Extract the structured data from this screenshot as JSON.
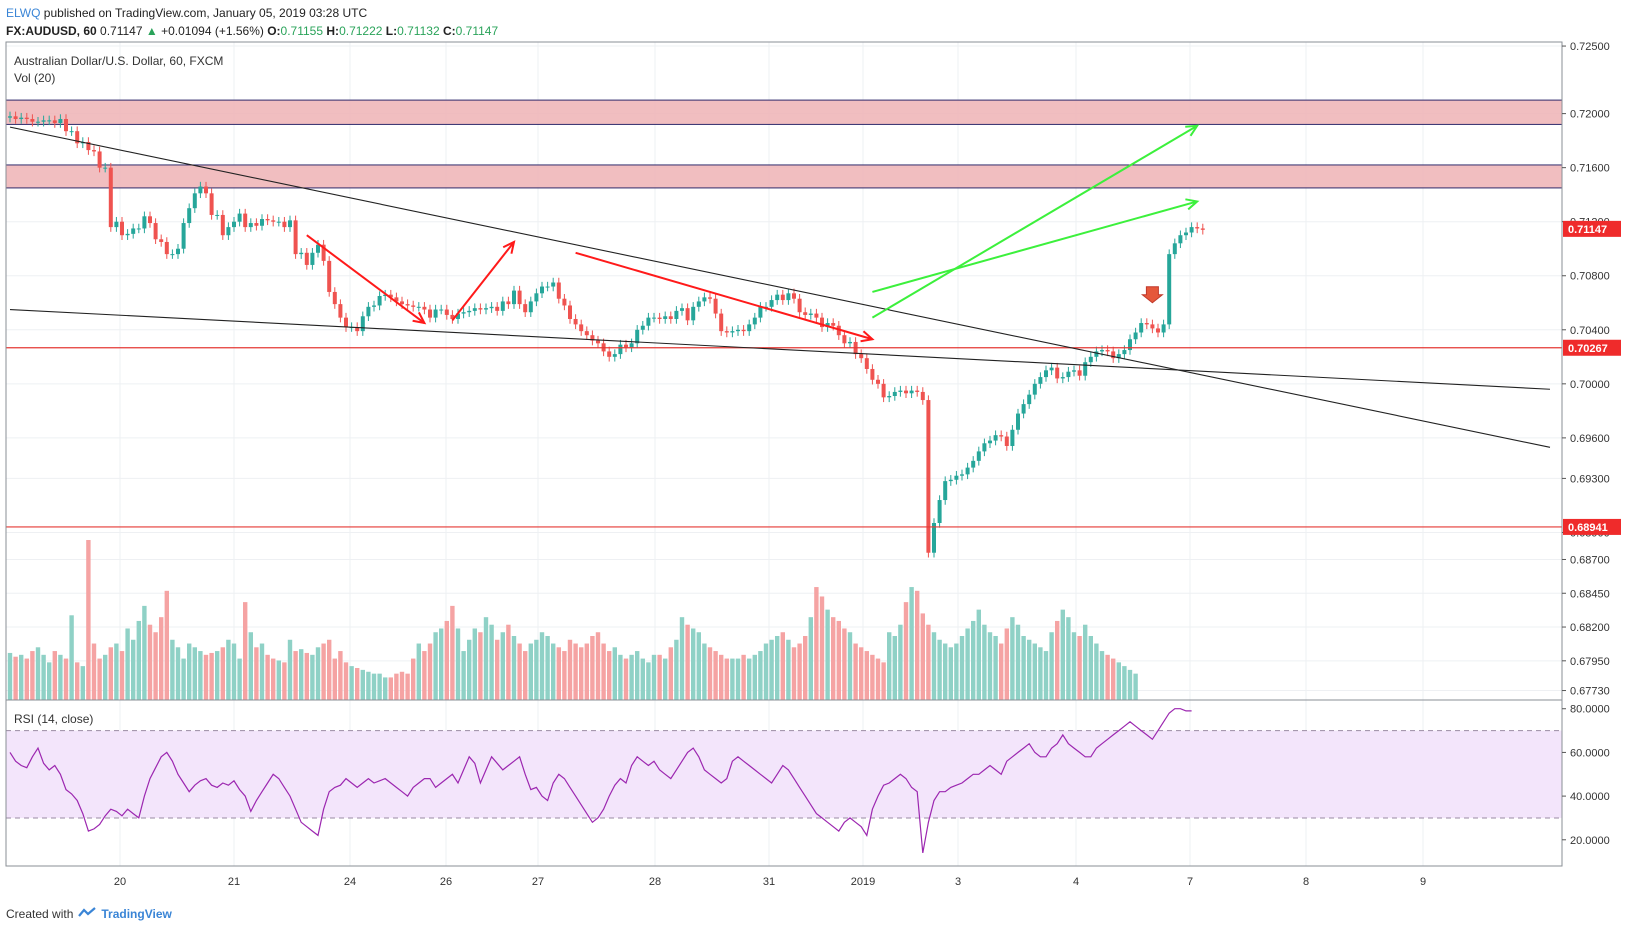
{
  "header": {
    "user": "ELWQ",
    "published": "published on TradingView.com, January 05, 2019 03:28 UTC",
    "symbol": "FX:AUDUSD, 60",
    "last": "0.71147",
    "change_arrow": "▲",
    "change": "+0.01094 (+1.56%)",
    "o_label": "O:",
    "o": "0.71155",
    "h_label": "H:",
    "h": "0.71222",
    "l_label": "L:",
    "l": "0.71132",
    "c_label": "C:",
    "c": "0.71147"
  },
  "main_pane": {
    "title": "Australian Dollar/U.S. Dollar, 60, FXCM",
    "vol_label": "Vol (20)"
  },
  "rsi_pane": {
    "title": "RSI (14, close)"
  },
  "footer": {
    "created": "Created with",
    "brand": "TradingView"
  },
  "colors": {
    "up": "#26a69a",
    "down": "#ef5350",
    "vol_up": "#8fd1c6",
    "vol_down": "#f5a3a3",
    "zone_fill": "#eeb3b5",
    "zone_border": "#2f2a6b",
    "red_line": "#e53935",
    "green_arrow": "#3cf03c",
    "red_arrow": "#ff1a1a",
    "rsi_line": "#9c27b0",
    "rsi_band": "#f3e5fb",
    "tag_red": "#ef2b2b"
  },
  "chart_data": [
    {
      "type": "candlestick",
      "title": "Australian Dollar/U.S. Dollar, 60, FXCM",
      "symbol": "FX:AUDUSD",
      "timeframe": "60",
      "x_tick_labels": [
        "20",
        "21",
        "24",
        "26",
        "27",
        "28",
        "31",
        "2019",
        "3",
        "4",
        "7",
        "8",
        "9"
      ],
      "y_tick_labels": [
        "0.72500",
        "0.72000",
        "0.71600",
        "0.71200",
        "0.70800",
        "0.70400",
        "0.70000",
        "0.69600",
        "0.69300",
        "0.68900",
        "0.68700",
        "0.68450",
        "0.68200",
        "0.67950",
        "0.67730"
      ],
      "ylim": [
        0.6766,
        0.7253
      ],
      "price_tags": [
        {
          "label": "0.71147",
          "value": 0.71147
        },
        {
          "label": "0.70267",
          "value": 0.70267
        },
        {
          "label": "0.68941",
          "value": 0.68941
        }
      ],
      "horizontal_lines": [
        0.70267,
        0.68941
      ],
      "resistance_zones": [
        [
          0.7192,
          0.721
        ],
        [
          0.7145,
          0.7162
        ]
      ],
      "trendlines": [
        {
          "name": "descending-trendline",
          "from": {
            "bar": 0,
            "price": 0.719
          },
          "to": {
            "bar": 275,
            "price": 0.6953
          }
        },
        {
          "name": "support-trendline",
          "from": {
            "bar": 0,
            "price": 0.7055
          },
          "to": {
            "bar": 275,
            "price": 0.6996
          }
        }
      ],
      "annotation_arrows": [
        {
          "color": "red",
          "from": {
            "bar": 53,
            "price": 0.711
          },
          "to": {
            "bar": 74,
            "price": 0.7045
          }
        },
        {
          "color": "red",
          "from": {
            "bar": 79,
            "price": 0.7047
          },
          "to": {
            "bar": 90,
            "price": 0.7105
          }
        },
        {
          "color": "red",
          "from": {
            "bar": 101,
            "price": 0.7097
          },
          "to": {
            "bar": 154,
            "price": 0.7033
          }
        },
        {
          "color": "green",
          "from": {
            "bar": 154,
            "price": 0.7049
          },
          "to": {
            "bar": 212,
            "price": 0.7191
          }
        },
        {
          "color": "green",
          "from": {
            "bar": 154,
            "price": 0.7068
          },
          "to": {
            "bar": 212,
            "price": 0.7135
          }
        },
        {
          "color": "red-down-marker",
          "at": {
            "bar": 204,
            "price": 0.706
          }
        }
      ],
      "series": [
        {
          "name": "AUDUSD close (hourly, approximate)",
          "values": [
            0.7198,
            0.7196,
            0.7197,
            0.7196,
            0.7194,
            0.7194,
            0.7195,
            0.7195,
            0.7193,
            0.7196,
            0.7187,
            0.7187,
            0.7178,
            0.7179,
            0.7173,
            0.7172,
            0.716,
            0.716,
            0.7116,
            0.712,
            0.711,
            0.7111,
            0.7115,
            0.7115,
            0.7124,
            0.7119,
            0.7107,
            0.7105,
            0.7096,
            0.7096,
            0.71,
            0.7119,
            0.713,
            0.7141,
            0.7146,
            0.7141,
            0.7125,
            0.7125,
            0.711,
            0.7116,
            0.712,
            0.7126,
            0.7116,
            0.7119,
            0.7117,
            0.7122,
            0.7121,
            0.712,
            0.712,
            0.7116,
            0.7121,
            0.7096,
            0.7097,
            0.7088,
            0.7097,
            0.7103,
            0.7091,
            0.7068,
            0.7059,
            0.7049,
            0.7042,
            0.7042,
            0.7039,
            0.705,
            0.7057,
            0.7058,
            0.7065,
            0.7066,
            0.7064,
            0.7061,
            0.7059,
            0.7058,
            0.7057,
            0.7057,
            0.7055,
            0.7049,
            0.7055,
            0.7055,
            0.7051,
            0.7048,
            0.7052,
            0.7053,
            0.7054,
            0.7056,
            0.7055,
            0.7056,
            0.7057,
            0.7054,
            0.7061,
            0.7059,
            0.7069,
            0.7059,
            0.7053,
            0.7061,
            0.7067,
            0.7072,
            0.7072,
            0.7075,
            0.7063,
            0.7058,
            0.7048,
            0.7044,
            0.7039,
            0.7036,
            0.7032,
            0.703,
            0.7024,
            0.702,
            0.7022,
            0.7029,
            0.7027,
            0.703,
            0.704,
            0.7043,
            0.7049,
            0.7049,
            0.7048,
            0.705,
            0.7048,
            0.7054,
            0.7056,
            0.7047,
            0.7057,
            0.7061,
            0.7064,
            0.7063,
            0.7052,
            0.7039,
            0.7038,
            0.7039,
            0.704,
            0.7039,
            0.7044,
            0.7049,
            0.7057,
            0.7057,
            0.7062,
            0.7066,
            0.7062,
            0.7067,
            0.7063,
            0.7053,
            0.7051,
            0.7052,
            0.7049,
            0.7042,
            0.7045,
            0.7043,
            0.7036,
            0.703,
            0.7031,
            0.7022,
            0.7019,
            0.7011,
            0.7003,
            0.7,
            0.699,
            0.6991,
            0.6994,
            0.6995,
            0.6993,
            0.6995,
            0.6994,
            0.6988,
            0.6875,
            0.6897,
            0.6914,
            0.6928,
            0.6929,
            0.6932,
            0.6933,
            0.6938,
            0.6943,
            0.695,
            0.6956,
            0.6958,
            0.6962,
            0.6961,
            0.6954,
            0.6966,
            0.6978,
            0.6985,
            0.6992,
            0.7,
            0.7005,
            0.701,
            0.7012,
            0.7004,
            0.7005,
            0.7009,
            0.701,
            0.7006,
            0.7016,
            0.702,
            0.7024,
            0.7025,
            0.7024,
            0.7019,
            0.7022,
            0.7025,
            0.7033,
            0.7038,
            0.7045,
            0.7044,
            0.7041,
            0.7038,
            0.7044,
            0.7096,
            0.7104,
            0.711,
            0.7112,
            0.7116,
            0.7115,
            0.7114
          ]
        }
      ]
    },
    {
      "type": "bar",
      "title": "Vol (20)",
      "series": [
        {
          "name": "volume (relative, approximate)",
          "values": [
            25,
            23,
            24,
            22,
            26,
            28,
            24,
            20,
            26,
            24,
            22,
            45,
            20,
            18,
            85,
            30,
            22,
            24,
            28,
            30,
            26,
            38,
            32,
            42,
            50,
            40,
            36,
            44,
            58,
            32,
            28,
            22,
            30,
            28,
            26,
            24,
            25,
            26,
            28,
            32,
            30,
            22,
            52,
            36,
            28,
            30,
            24,
            22,
            21,
            20,
            32,
            26,
            27,
            25,
            24,
            28,
            30,
            32,
            22,
            26,
            20,
            18,
            17,
            16,
            15,
            14,
            14,
            12,
            12,
            14,
            15,
            14,
            22,
            30,
            26,
            30,
            36,
            38,
            42,
            50,
            38,
            26,
            32,
            38,
            36,
            44,
            40,
            32,
            36,
            40,
            34,
            30,
            26,
            30,
            32,
            36,
            34,
            30,
            28,
            26,
            32,
            30,
            28,
            30,
            34,
            36,
            30,
            26,
            28,
            24,
            22,
            24,
            26,
            22,
            20,
            24,
            24,
            22,
            28,
            32,
            44,
            40,
            38,
            36,
            30,
            28,
            26,
            24,
            22,
            22,
            22,
            24,
            22,
            24,
            26,
            30,
            32,
            34,
            36,
            32,
            28,
            30,
            34,
            44,
            60,
            55,
            48,
            44,
            42,
            38,
            36,
            30,
            28,
            26,
            24,
            22,
            20,
            36,
            34,
            40,
            52,
            60,
            58,
            46,
            40,
            36,
            32,
            30,
            28,
            30,
            34,
            38,
            42,
            48,
            40,
            36,
            34,
            30,
            38,
            44,
            40,
            34,
            32,
            30,
            28,
            26,
            36,
            42,
            48,
            44,
            36,
            34,
            40,
            34,
            30,
            26,
            24,
            22,
            20,
            18,
            16,
            14
          ]
        }
      ]
    },
    {
      "type": "line",
      "title": "RSI (14, close)",
      "y_tick_labels": [
        "80.0000",
        "60.0000",
        "40.0000",
        "20.0000"
      ],
      "ylim": [
        8,
        84
      ],
      "bands": [
        30,
        70
      ],
      "series": [
        {
          "name": "RSI",
          "values": [
            60,
            56,
            54,
            53,
            58,
            62,
            55,
            52,
            54,
            50,
            43,
            41,
            38,
            32,
            24,
            25,
            27,
            31,
            34,
            33,
            31,
            34,
            32,
            30,
            40,
            48,
            53,
            58,
            60,
            56,
            50,
            46,
            42,
            45,
            47,
            48,
            45,
            44,
            46,
            45,
            47,
            43,
            40,
            33,
            38,
            42,
            46,
            50,
            48,
            44,
            40,
            34,
            28,
            26,
            24,
            22,
            34,
            42,
            44,
            45,
            48,
            46,
            44,
            46,
            48,
            46,
            47,
            48,
            46,
            44,
            42,
            40,
            44,
            46,
            48,
            48,
            44,
            46,
            48,
            50,
            46,
            52,
            58,
            55,
            46,
            52,
            58,
            55,
            52,
            54,
            56,
            58,
            50,
            43,
            44,
            40,
            38,
            46,
            50,
            48,
            44,
            40,
            36,
            32,
            28,
            30,
            34,
            40,
            45,
            48,
            46,
            54,
            58,
            56,
            54,
            56,
            52,
            50,
            48,
            52,
            56,
            60,
            62,
            58,
            52,
            50,
            48,
            46,
            48,
            56,
            58,
            56,
            54,
            52,
            50,
            48,
            46,
            50,
            54,
            52,
            48,
            44,
            40,
            36,
            32,
            30,
            28,
            26,
            24,
            28,
            30,
            28,
            26,
            22,
            34,
            40,
            45,
            46,
            48,
            50,
            48,
            44,
            42,
            14,
            28,
            38,
            42,
            42,
            44,
            45,
            46,
            48,
            50,
            50,
            52,
            54,
            52,
            50,
            56,
            58,
            60,
            62,
            64,
            60,
            58,
            58,
            62,
            64,
            68,
            64,
            62,
            60,
            58,
            58,
            62,
            64,
            66,
            68,
            70,
            72,
            74,
            72,
            70,
            68,
            66,
            70,
            74,
            78,
            80,
            80,
            79,
            79
          ]
        }
      ]
    }
  ]
}
